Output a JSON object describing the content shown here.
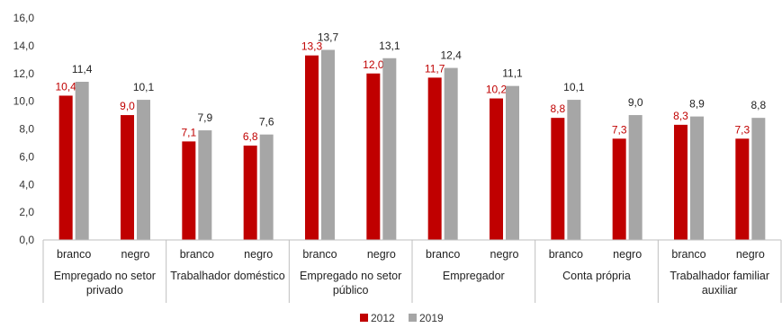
{
  "chart_data": {
    "type": "bar",
    "title": "",
    "xlabel": "",
    "ylabel": "",
    "ylim": [
      0,
      16
    ],
    "yticks": [
      "0,0",
      "2,0",
      "4,0",
      "6,0",
      "8,0",
      "10,0",
      "12,0",
      "14,0",
      "16,0"
    ],
    "grid": false,
    "legend_position": "bottom",
    "groups": [
      {
        "label_lines": [
          "Empregado no setor",
          "privado"
        ],
        "categories": [
          "branco",
          "negro"
        ]
      },
      {
        "label_lines": [
          "Trabalhador doméstico"
        ],
        "categories": [
          "branco",
          "negro"
        ]
      },
      {
        "label_lines": [
          "Empregado no setor",
          "público"
        ],
        "categories": [
          "branco",
          "negro"
        ]
      },
      {
        "label_lines": [
          "Empregador"
        ],
        "categories": [
          "branco",
          "negro"
        ]
      },
      {
        "label_lines": [
          "Conta própria"
        ],
        "categories": [
          "branco",
          "negro"
        ]
      },
      {
        "label_lines": [
          "Trabalhador familiar",
          "auxiliar"
        ],
        "categories": [
          "branco",
          "negro"
        ]
      }
    ],
    "categories": [
      "branco",
      "negro",
      "branco",
      "negro",
      "branco",
      "negro",
      "branco",
      "negro",
      "branco",
      "negro",
      "branco",
      "negro"
    ],
    "series": [
      {
        "name": "2012",
        "color": "#c00000",
        "label_color": "#c00000",
        "values": [
          10.4,
          9.0,
          7.1,
          6.8,
          13.3,
          12.0,
          11.7,
          10.2,
          8.8,
          7.3,
          8.3,
          7.3
        ],
        "labels": [
          "10,4",
          "9,0",
          "7,1",
          "6,8",
          "13,3",
          "12,0",
          "11,7",
          "10,2",
          "8,8",
          "7,3",
          "8,3",
          "7,3"
        ]
      },
      {
        "name": "2019",
        "color": "#a6a6a6",
        "label_color": "#222222",
        "values": [
          11.4,
          10.1,
          7.9,
          7.6,
          13.7,
          13.1,
          12.4,
          11.1,
          10.1,
          9.0,
          8.9,
          8.8
        ],
        "labels": [
          "11,4",
          "10,1",
          "7,9",
          "7,6",
          "13,7",
          "13,1",
          "12,4",
          "11,1",
          "10,1",
          "9,0",
          "8,9",
          "8,8"
        ]
      }
    ]
  }
}
